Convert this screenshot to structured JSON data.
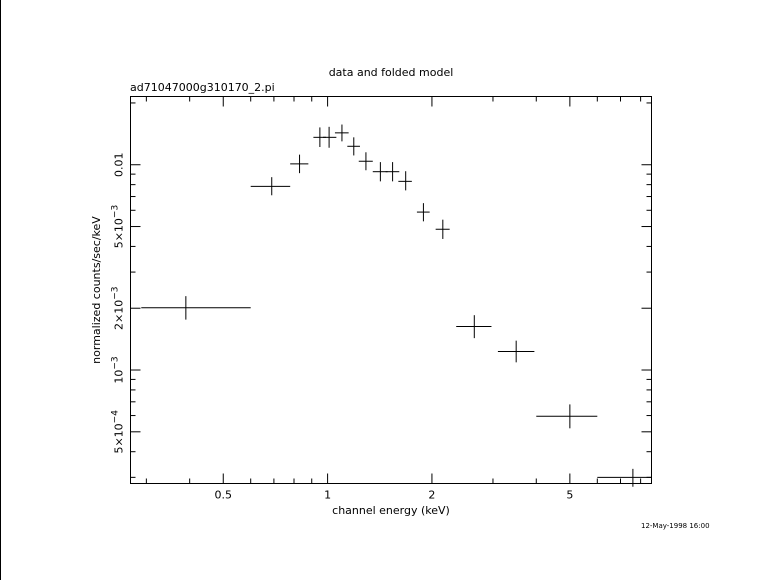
{
  "chart_data": {
    "type": "scatter",
    "title": "data and folded model",
    "subtitle": "ad71047000g310170_2.pi",
    "xlabel": "channel energy (keV)",
    "ylabel": "normalized counts/sec/keV",
    "xscale": "log",
    "yscale": "log",
    "xlim": [
      0.27,
      8.6
    ],
    "ylim": [
      0.00028,
      0.0215
    ],
    "x_ticks": [
      {
        "value": 0.5,
        "label": "0.5"
      },
      {
        "value": 1,
        "label": "1"
      },
      {
        "value": 2,
        "label": "2"
      },
      {
        "value": 5,
        "label": "5"
      }
    ],
    "y_ticks": [
      {
        "value": 0.0005,
        "label": "5×10",
        "exp": "−4"
      },
      {
        "value": 0.001,
        "label": "10",
        "exp": "−3"
      },
      {
        "value": 0.002,
        "label": "2×10",
        "exp": "−3"
      },
      {
        "value": 0.005,
        "label": "5×10",
        "exp": "−3"
      },
      {
        "value": 0.01,
        "label": "0.01",
        "exp": ""
      }
    ],
    "series": [
      {
        "points": [
          {
            "x": 0.39,
            "y": 0.00201,
            "xlo": 0.29,
            "xhi": 0.6,
            "ylo": 0.00176,
            "yhi": 0.00229
          },
          {
            "x": 0.69,
            "y": 0.00785,
            "xlo": 0.6,
            "xhi": 0.78,
            "ylo": 0.0071,
            "yhi": 0.0087
          },
          {
            "x": 0.83,
            "y": 0.0101,
            "xlo": 0.78,
            "xhi": 0.88,
            "ylo": 0.0091,
            "yhi": 0.0112
          },
          {
            "x": 0.95,
            "y": 0.0136,
            "xlo": 0.91,
            "xhi": 0.99,
            "ylo": 0.0122,
            "yhi": 0.0152
          },
          {
            "x": 1.01,
            "y": 0.0136,
            "xlo": 0.97,
            "xhi": 1.06,
            "ylo": 0.0121,
            "yhi": 0.0153
          },
          {
            "x": 1.1,
            "y": 0.0143,
            "xlo": 1.05,
            "xhi": 1.15,
            "ylo": 0.013,
            "yhi": 0.0157
          },
          {
            "x": 1.19,
            "y": 0.0123,
            "xlo": 1.14,
            "xhi": 1.24,
            "ylo": 0.0111,
            "yhi": 0.0136
          },
          {
            "x": 1.29,
            "y": 0.0104,
            "xlo": 1.23,
            "xhi": 1.35,
            "ylo": 0.0094,
            "yhi": 0.0115
          },
          {
            "x": 1.42,
            "y": 0.00925,
            "xlo": 1.35,
            "xhi": 1.49,
            "ylo": 0.0083,
            "yhi": 0.0103
          },
          {
            "x": 1.54,
            "y": 0.00925,
            "xlo": 1.47,
            "xhi": 1.61,
            "ylo": 0.0083,
            "yhi": 0.0103
          },
          {
            "x": 1.68,
            "y": 0.0083,
            "xlo": 1.6,
            "xhi": 1.75,
            "ylo": 0.0075,
            "yhi": 0.0093
          },
          {
            "x": 1.89,
            "y": 0.00588,
            "xlo": 1.81,
            "xhi": 1.97,
            "ylo": 0.0053,
            "yhi": 0.0065
          },
          {
            "x": 2.15,
            "y": 0.00485,
            "xlo": 2.05,
            "xhi": 2.25,
            "ylo": 0.00435,
            "yhi": 0.0054
          },
          {
            "x": 2.65,
            "y": 0.00163,
            "xlo": 2.35,
            "xhi": 2.97,
            "ylo": 0.00143,
            "yhi": 0.00185
          },
          {
            "x": 3.5,
            "y": 0.00123,
            "xlo": 3.1,
            "xhi": 3.95,
            "ylo": 0.00109,
            "yhi": 0.00139
          },
          {
            "x": 5.0,
            "y": 0.000595,
            "xlo": 4.0,
            "xhi": 6.0,
            "ylo": 0.00052,
            "yhi": 0.00068
          },
          {
            "x": 7.6,
            "y": 0.0003,
            "xlo": 6.0,
            "xhi": 8.6,
            "ylo": 0.00027,
            "yhi": 0.00033
          }
        ]
      }
    ]
  },
  "footer": {
    "timestamp": "12-May-1998 16:00"
  }
}
